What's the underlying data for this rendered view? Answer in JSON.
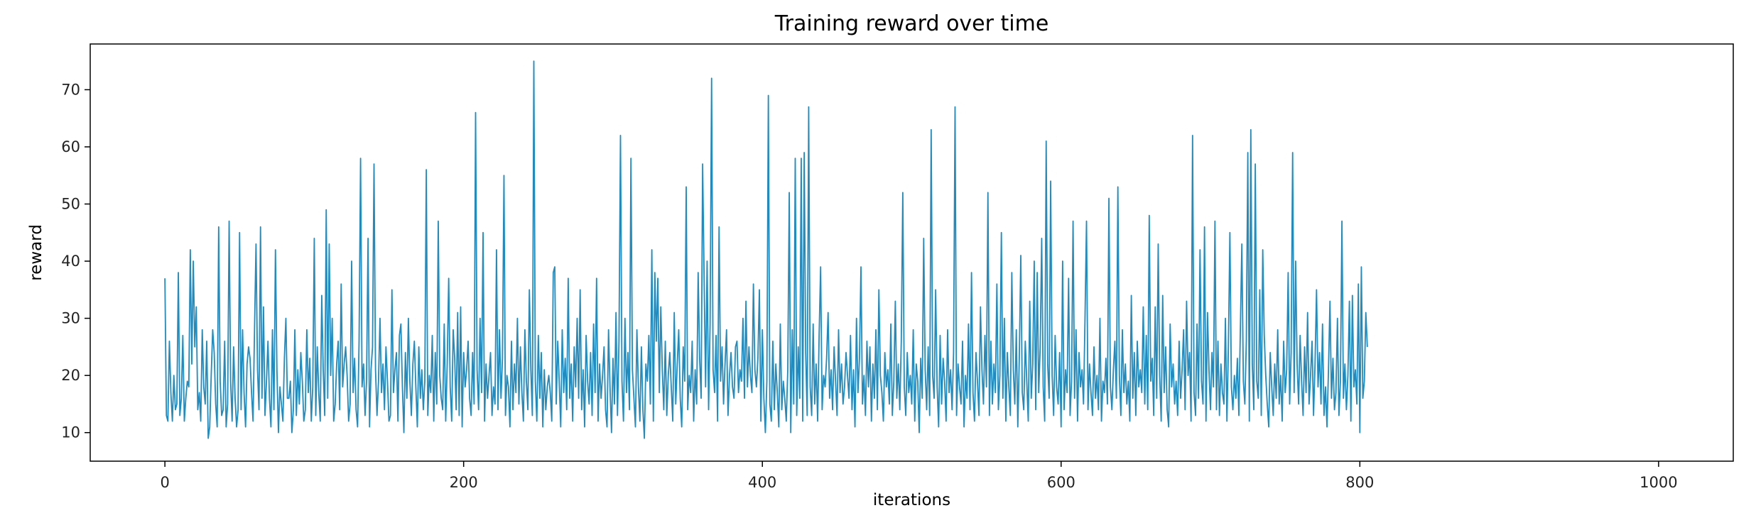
{
  "chart_data": {
    "type": "line",
    "title": "Training reward over time",
    "xlabel": "iterations",
    "ylabel": "reward",
    "xlim": [
      -50,
      1050
    ],
    "ylim": [
      5,
      78
    ],
    "xticks": [
      0,
      200,
      400,
      600,
      800,
      1000
    ],
    "yticks": [
      10,
      20,
      30,
      40,
      50,
      60,
      70
    ],
    "grid": false,
    "colors": {
      "line": "#1f8bbf",
      "axes": "#000000"
    },
    "series": [
      {
        "x_start": 0,
        "x_step": 1,
        "values": [
          37,
          13,
          12,
          26,
          17,
          12,
          20,
          14,
          15,
          38,
          13,
          16,
          27,
          12,
          16,
          19,
          18,
          42,
          22,
          40,
          25,
          32,
          14,
          17,
          12,
          28,
          18,
          15,
          26,
          9,
          11,
          20,
          28,
          24,
          15,
          11,
          46,
          19,
          13,
          14,
          26,
          11,
          15,
          47,
          19,
          12,
          25,
          16,
          11,
          14,
          45,
          14,
          28,
          17,
          11,
          22,
          25,
          23,
          17,
          12,
          28,
          43,
          21,
          14,
          46,
          16,
          32,
          13,
          19,
          26,
          16,
          11,
          28,
          14,
          42,
          21,
          10,
          18,
          15,
          12,
          23,
          30,
          16,
          16,
          19,
          10,
          14,
          28,
          13,
          21,
          15,
          24,
          19,
          12,
          14,
          28,
          17,
          23,
          12,
          18,
          44,
          13,
          25,
          17,
          12,
          34,
          21,
          13,
          49,
          16,
          43,
          20,
          30,
          12,
          15,
          22,
          26,
          14,
          36,
          18,
          22,
          25,
          20,
          12,
          15,
          40,
          17,
          23,
          14,
          11,
          26,
          58,
          18,
          22,
          13,
          19,
          44,
          11,
          21,
          25,
          57,
          21,
          13,
          19,
          30,
          17,
          22,
          14,
          25,
          19,
          12,
          13,
          35,
          17,
          21,
          24,
          12,
          27,
          29,
          18,
          10,
          24,
          16,
          30,
          19,
          13,
          22,
          26,
          18,
          11,
          25,
          16,
          21,
          14,
          19,
          56,
          13,
          20,
          17,
          27,
          12,
          24,
          15,
          47,
          20,
          16,
          14,
          29,
          12,
          22,
          37,
          18,
          12,
          28,
          23,
          14,
          31,
          13,
          32,
          11,
          24,
          18,
          21,
          26,
          16,
          13,
          24,
          15,
          66,
          21,
          14,
          30,
          17,
          45,
          12,
          22,
          16,
          20,
          24,
          13,
          18,
          15,
          42,
          14,
          28,
          16,
          23,
          55,
          13,
          20,
          18,
          11,
          26,
          14,
          22,
          17,
          30,
          15,
          25,
          17,
          12,
          28,
          19,
          14,
          35,
          21,
          13,
          75,
          19,
          12,
          27,
          16,
          24,
          11,
          21,
          14,
          18,
          20,
          17,
          12,
          38,
          39,
          15,
          26,
          19,
          11,
          28,
          17,
          23,
          14,
          37,
          16,
          22,
          12,
          25,
          18,
          30,
          16,
          35,
          14,
          21,
          11,
          27,
          19,
          15,
          24,
          13,
          29,
          17,
          37,
          12,
          22,
          16,
          20,
          25,
          14,
          11,
          28,
          18,
          10,
          23,
          15,
          31,
          13,
          26,
          62,
          19,
          12,
          30,
          17,
          24,
          14,
          58,
          21,
          16,
          11,
          28,
          18,
          12,
          25,
          14,
          9,
          22,
          19,
          27,
          15,
          42,
          12,
          38,
          26,
          37,
          17,
          32,
          21,
          14,
          26,
          13,
          20,
          24,
          18,
          12,
          31,
          15,
          22,
          28,
          16,
          11,
          25,
          19,
          53,
          14,
          20,
          17,
          26,
          12,
          21,
          15,
          38,
          23,
          16,
          57,
          37,
          18,
          40,
          14,
          29,
          72,
          21,
          17,
          27,
          12,
          46,
          19,
          25,
          15,
          22,
          28,
          13,
          20,
          24,
          18,
          16,
          25,
          26,
          17,
          21,
          19,
          30,
          16,
          33,
          18,
          25,
          20,
          17,
          36,
          21,
          18,
          23,
          35,
          12,
          28,
          16,
          10,
          19,
          69,
          15,
          12,
          26,
          14,
          22,
          17,
          11,
          29,
          14,
          19,
          16,
          12,
          21,
          52,
          10,
          28,
          15,
          58,
          13,
          25,
          16,
          58,
          12,
          59,
          24,
          13,
          67,
          18,
          13,
          29,
          15,
          22,
          12,
          27,
          39,
          14,
          20,
          18,
          23,
          31,
          16,
          21,
          14,
          25,
          19,
          13,
          28,
          17,
          22,
          15,
          18,
          24,
          20,
          16,
          27,
          14,
          21,
          11,
          30,
          17,
          23,
          39,
          15,
          20,
          13,
          26,
          18,
          25,
          12,
          22,
          16,
          28,
          14,
          35,
          20,
          17,
          12,
          24,
          18,
          21,
          15,
          29,
          13,
          19,
          33,
          16,
          22,
          14,
          26,
          52,
          18,
          13,
          24,
          17,
          20,
          15,
          28,
          12,
          22,
          19,
          10,
          23,
          16,
          44,
          21,
          14,
          25,
          13,
          63,
          20,
          16,
          35,
          18,
          11,
          27,
          15,
          23,
          19,
          12,
          28,
          17,
          21,
          14,
          24,
          67,
          13,
          22,
          18,
          15,
          26,
          11,
          20,
          16,
          29,
          14,
          38,
          17,
          12,
          24,
          19,
          13,
          32,
          21,
          15,
          27,
          18,
          52,
          13,
          26,
          15,
          22,
          17,
          36,
          14,
          20,
          45,
          16,
          30,
          12,
          24,
          18,
          13,
          38,
          21,
          15,
          28,
          11,
          23,
          41,
          17,
          14,
          26,
          19,
          12,
          33,
          16,
          22,
          40,
          14,
          38,
          17,
          25,
          44,
          18,
          12,
          61,
          22,
          16,
          54,
          20,
          13,
          27,
          18,
          15,
          24,
          11,
          40,
          14,
          21,
          17,
          37,
          13,
          19,
          47,
          16,
          28,
          12,
          24,
          18,
          21,
          15,
          30,
          47,
          14,
          22,
          17,
          13,
          25,
          16,
          20,
          14,
          30,
          12,
          19,
          17,
          23,
          15,
          51,
          18,
          14,
          21,
          26,
          16,
          53,
          20,
          13,
          28,
          17,
          22,
          15,
          19,
          12,
          34,
          16,
          24,
          13,
          26,
          18,
          21,
          17,
          32,
          15,
          27,
          14,
          48,
          19,
          23,
          13,
          32,
          16,
          43,
          20,
          12,
          34,
          17,
          25,
          14,
          11,
          29,
          18,
          22,
          15,
          19,
          13,
          26,
          16,
          21,
          28,
          14,
          33,
          20,
          24,
          12,
          62,
          17,
          13,
          29,
          16,
          42,
          19,
          15,
          46,
          12,
          31,
          21,
          14,
          24,
          18,
          47,
          14,
          26,
          13,
          22,
          17,
          15,
          30,
          12,
          25,
          45,
          18,
          14,
          20,
          16,
          23,
          13,
          28,
          43,
          19,
          15,
          26,
          59,
          12,
          63,
          22,
          14,
          57,
          19,
          16,
          35,
          13,
          42,
          27,
          20,
          15,
          11,
          24,
          18,
          13,
          22,
          16,
          28,
          15,
          20,
          12,
          26,
          17,
          21,
          38,
          15,
          24,
          59,
          17,
          40,
          22,
          15,
          27,
          19,
          13,
          25,
          17,
          31,
          15,
          20,
          26,
          13,
          22,
          35,
          18,
          24,
          15,
          29,
          13,
          18,
          11,
          21,
          33,
          16,
          23,
          14,
          17,
          30,
          13,
          19,
          47,
          16,
          22,
          14,
          20,
          33,
          12,
          34,
          18,
          21,
          15,
          36,
          10,
          39,
          16,
          19,
          31,
          25
        ]
      }
    ]
  }
}
